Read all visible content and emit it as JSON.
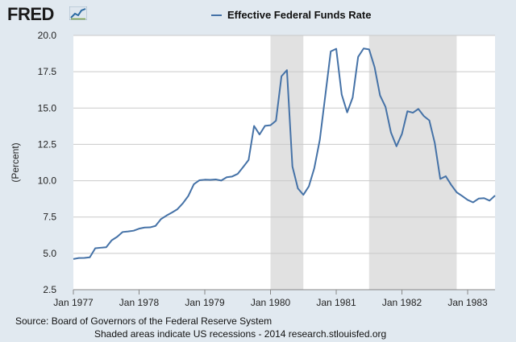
{
  "brand": {
    "logo_text": "FRED",
    "logo_mark_icon": "fred-chart-logo-icon"
  },
  "legend": {
    "label": "Effective Federal Funds Rate",
    "color": "#4572a7"
  },
  "footer": {
    "source": "Source: Board of Governors of the Federal Reserve System",
    "note": "Shaded areas indicate US recessions - 2014 research.stlouisfed.org"
  },
  "chart_data": {
    "type": "line",
    "title": "",
    "xlabel": "",
    "ylabel": "(Percent)",
    "ylim": [
      2.5,
      20.0
    ],
    "xlim": [
      1977.0,
      1983.4167
    ],
    "grid": true,
    "legend_position": "top-center",
    "yticks": [
      {
        "value": 2.5,
        "label": "2.5"
      },
      {
        "value": 5.0,
        "label": "5.0"
      },
      {
        "value": 7.5,
        "label": "7.5"
      },
      {
        "value": 10.0,
        "label": "10.0"
      },
      {
        "value": 12.5,
        "label": "12.5"
      },
      {
        "value": 15.0,
        "label": "15.0"
      },
      {
        "value": 17.5,
        "label": "17.5"
      },
      {
        "value": 20.0,
        "label": "20.0"
      }
    ],
    "xticks": [
      {
        "value": 1977.0,
        "label": "Jan 1977"
      },
      {
        "value": 1978.0,
        "label": "Jan 1978"
      },
      {
        "value": 1979.0,
        "label": "Jan 1979"
      },
      {
        "value": 1980.0,
        "label": "Jan 1980"
      },
      {
        "value": 1981.0,
        "label": "Jan 1981"
      },
      {
        "value": 1982.0,
        "label": "Jan 1982"
      },
      {
        "value": 1983.0,
        "label": "Jan 1983"
      }
    ],
    "recessions": [
      {
        "start": 1980.0,
        "end": 1980.5
      },
      {
        "start": 1981.5,
        "end": 1982.8333
      }
    ],
    "series": [
      {
        "name": "Effective Federal Funds Rate",
        "color": "#4572a7",
        "x": [
          1977.0,
          1977.0833,
          1977.1667,
          1977.25,
          1977.3333,
          1977.4167,
          1977.5,
          1977.5833,
          1977.6667,
          1977.75,
          1977.8333,
          1977.9167,
          1978.0,
          1978.0833,
          1978.1667,
          1978.25,
          1978.3333,
          1978.4167,
          1978.5,
          1978.5833,
          1978.6667,
          1978.75,
          1978.8333,
          1978.9167,
          1979.0,
          1979.0833,
          1979.1667,
          1979.25,
          1979.3333,
          1979.4167,
          1979.5,
          1979.5833,
          1979.6667,
          1979.75,
          1979.8333,
          1979.9167,
          1980.0,
          1980.0833,
          1980.1667,
          1980.25,
          1980.3333,
          1980.4167,
          1980.5,
          1980.5833,
          1980.6667,
          1980.75,
          1980.8333,
          1980.9167,
          1981.0,
          1981.0833,
          1981.1667,
          1981.25,
          1981.3333,
          1981.4167,
          1981.5,
          1981.5833,
          1981.6667,
          1981.75,
          1981.8333,
          1981.9167,
          1982.0,
          1982.0833,
          1982.1667,
          1982.25,
          1982.3333,
          1982.4167,
          1982.5,
          1982.5833,
          1982.6667,
          1982.75,
          1982.8333,
          1982.9167,
          1983.0,
          1983.0833,
          1983.1667,
          1983.25,
          1983.3333,
          1983.4167
        ],
        "y": [
          4.61,
          4.68,
          4.69,
          4.73,
          5.35,
          5.39,
          5.42,
          5.9,
          6.14,
          6.47,
          6.51,
          6.56,
          6.7,
          6.78,
          6.79,
          6.89,
          7.36,
          7.6,
          7.81,
          8.04,
          8.45,
          8.96,
          9.76,
          10.03,
          10.07,
          10.06,
          10.09,
          10.01,
          10.24,
          10.29,
          10.47,
          10.94,
          11.43,
          13.77,
          13.18,
          13.78,
          13.82,
          14.13,
          17.19,
          17.61,
          10.98,
          9.47,
          9.03,
          9.61,
          10.87,
          12.81,
          15.85,
          18.9,
          19.08,
          15.93,
          14.7,
          15.72,
          18.52,
          19.1,
          19.04,
          17.82,
          15.87,
          15.08,
          13.31,
          12.37,
          13.22,
          14.78,
          14.68,
          14.94,
          14.45,
          14.15,
          12.59,
          10.12,
          10.31,
          9.71,
          9.2,
          8.95,
          8.68,
          8.51,
          8.77,
          8.8,
          8.63,
          8.98
        ]
      }
    ]
  }
}
